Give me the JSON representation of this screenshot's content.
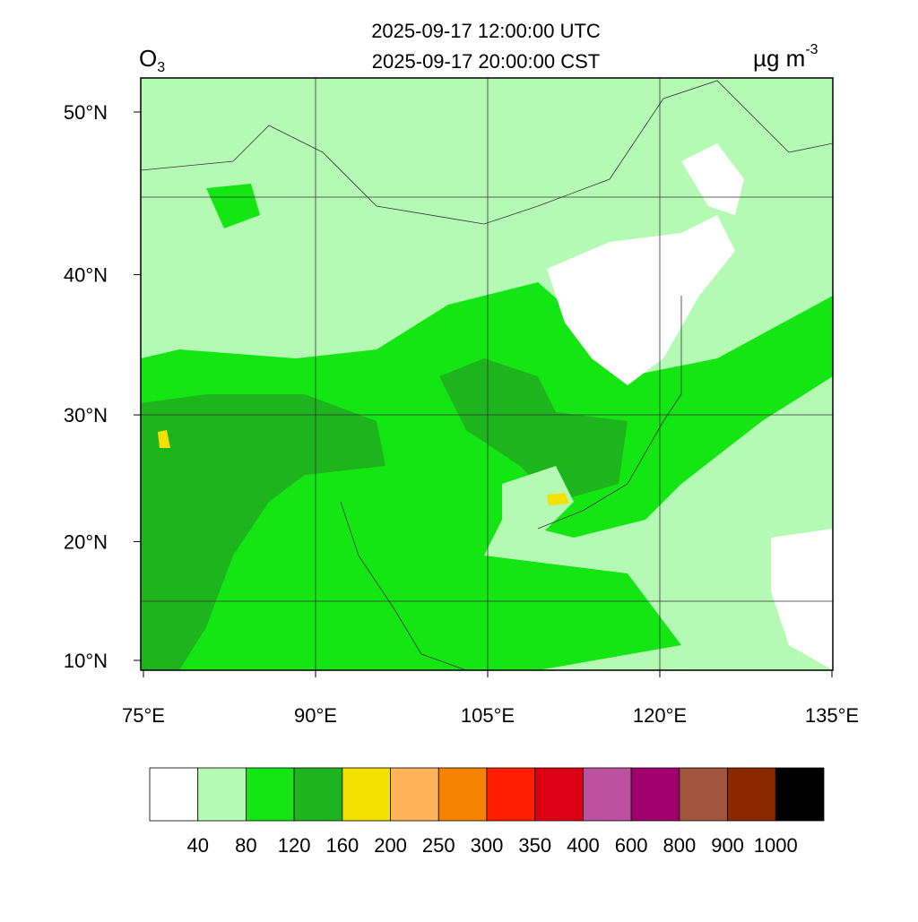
{
  "header": {
    "title_lines": [
      "2025-09-17 12:00:00 UTC",
      "2025-09-17 20:00:00 CST"
    ],
    "variable": {
      "symbol": "O",
      "subscript": "3"
    },
    "units": {
      "text": "µg m",
      "superscript": "-3"
    }
  },
  "map": {
    "latitude_ticks": [
      {
        "value": 10,
        "label": "10°N"
      },
      {
        "value": 20,
        "label": "20°N"
      },
      {
        "value": 30,
        "label": "30°N"
      },
      {
        "value": 40,
        "label": "40°N"
      },
      {
        "value": 50,
        "label": "50°N"
      }
    ],
    "longitude_ticks": [
      {
        "value": 75,
        "label": "75°E"
      },
      {
        "value": 90,
        "label": "90°E"
      },
      {
        "value": 105,
        "label": "105°E"
      },
      {
        "value": 120,
        "label": "120°E"
      },
      {
        "value": 135,
        "label": "135°E"
      }
    ]
  },
  "colorbar": {
    "colors": [
      "#ffffff",
      "#b4fab4",
      "#14e614",
      "#1eb41e",
      "#f5e100",
      "#ffb45a",
      "#f58200",
      "#ff1e00",
      "#dc0014",
      "#be50a0",
      "#a0006e",
      "#a0553c",
      "#8c2800",
      "#000000"
    ],
    "levels": [
      40,
      80,
      120,
      160,
      200,
      250,
      300,
      350,
      400,
      600,
      800,
      900,
      1000
    ]
  }
}
